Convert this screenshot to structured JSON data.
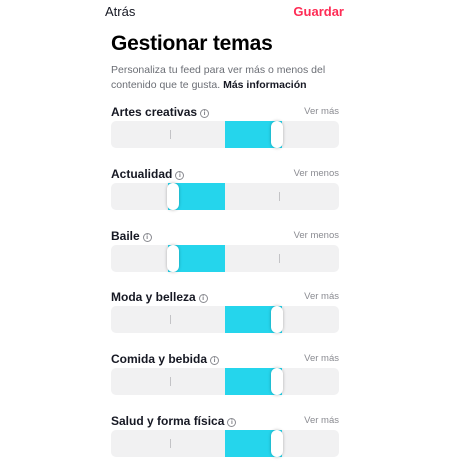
{
  "nav": {
    "back_label": "Atrás",
    "save_label": "Guardar",
    "save_color": "#fe2c55"
  },
  "header": {
    "title": "Gestionar temas",
    "description": "Personaliza tu feed para ver más o menos del contenido que te gusta.",
    "more_info_link": "Más información"
  },
  "slider": {
    "fill_color": "#25d5ec",
    "scale_note": "slider level as fraction from left (0 = ver menos, 0.5 = neutral, 1 = ver más)"
  },
  "topics": [
    {
      "name": "Artes creativas",
      "action": "Ver más",
      "level": 0.75
    },
    {
      "name": "Actualidad",
      "action": "Ver menos",
      "level": 0.25
    },
    {
      "name": "Baile",
      "action": "Ver menos",
      "level": 0.25
    },
    {
      "name": "Moda y belleza",
      "action": "Ver más",
      "level": 0.75
    },
    {
      "name": "Comida y bebida",
      "action": "Ver más",
      "level": 0.75
    },
    {
      "name": "Salud y forma física",
      "action": "Ver más",
      "level": 0.75
    }
  ]
}
